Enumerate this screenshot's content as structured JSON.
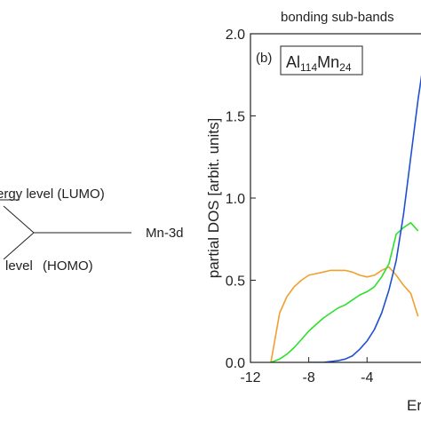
{
  "diagram": {
    "lumo_label": "ergy level (LUMO)",
    "homo_label": "level",
    "homo_tag": "(HOMO)",
    "mn_label": "Mn-3d"
  },
  "panel": {
    "header": "bonding sub-bands",
    "tag": "(b)",
    "compound_al": "Al",
    "compound_al_sub": "114",
    "compound_mn": "Mn",
    "compound_mn_sub": "24"
  },
  "chart_data": {
    "type": "line",
    "title": "",
    "ylabel": "partial DOS [arbit. units]",
    "xlabel": "Er",
    "xlim": [
      -12,
      0.8
    ],
    "ylim": [
      0,
      2.0
    ],
    "xticks": [
      "-12",
      "-8",
      "-4"
    ],
    "yticks": [
      "0.0",
      "0.5",
      "1.0",
      "1.5",
      "2.0"
    ],
    "series": [
      {
        "color": "#f0a030",
        "x": [
          -10.6,
          -10.3,
          -10.0,
          -9.5,
          -9.0,
          -8.5,
          -8.0,
          -7.5,
          -7.0,
          -6.5,
          -6.0,
          -5.5,
          -5.0,
          -4.5,
          -4.0,
          -3.5,
          -3.0,
          -2.5,
          -2.0,
          -1.5,
          -1.0,
          -0.5
        ],
        "y": [
          0.0,
          0.15,
          0.3,
          0.4,
          0.46,
          0.5,
          0.53,
          0.54,
          0.55,
          0.56,
          0.56,
          0.56,
          0.55,
          0.53,
          0.52,
          0.53,
          0.56,
          0.58,
          0.53,
          0.47,
          0.42,
          0.28
        ]
      },
      {
        "color": "#2ee02e",
        "x": [
          -10.6,
          -10.0,
          -9.5,
          -9.0,
          -8.5,
          -8.0,
          -7.5,
          -7.0,
          -6.5,
          -6.0,
          -5.5,
          -5.0,
          -4.5,
          -4.0,
          -3.5,
          -3.0,
          -2.5,
          -2.0,
          -1.5,
          -1.0,
          -0.5
        ],
        "y": [
          0.0,
          0.02,
          0.05,
          0.09,
          0.14,
          0.19,
          0.23,
          0.27,
          0.3,
          0.33,
          0.35,
          0.38,
          0.41,
          0.43,
          0.46,
          0.52,
          0.6,
          0.78,
          0.82,
          0.85,
          0.8
        ]
      },
      {
        "color": "#2050d0",
        "x": [
          -8.0,
          -7.0,
          -6.0,
          -5.5,
          -5.0,
          -4.5,
          -4.0,
          -3.5,
          -3.0,
          -2.5,
          -2.0,
          -1.5,
          -1.0,
          -0.5,
          0.0,
          0.5
        ],
        "y": [
          0.0,
          0.0,
          0.01,
          0.02,
          0.04,
          0.08,
          0.13,
          0.2,
          0.3,
          0.44,
          0.62,
          0.9,
          1.25,
          1.6,
          1.9,
          2.0
        ]
      }
    ]
  }
}
